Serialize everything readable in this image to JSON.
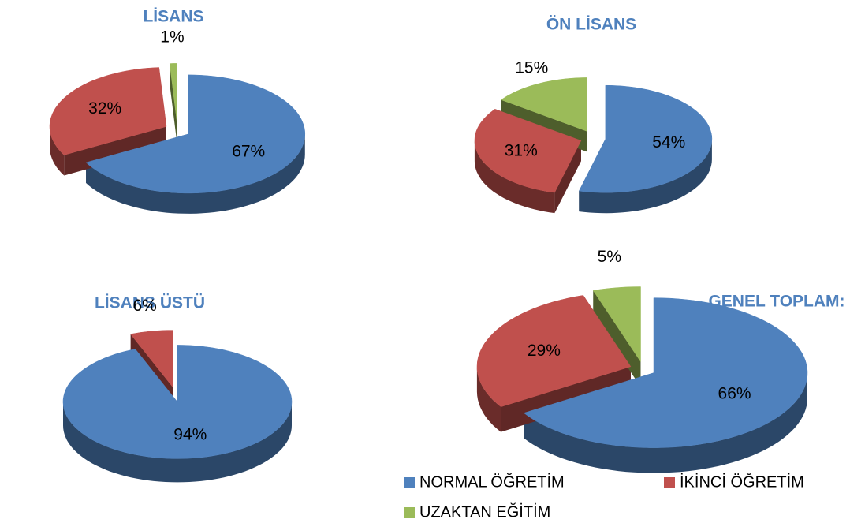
{
  "chart_data": [
    {
      "type": "pie",
      "title": "LİSANS",
      "categories": [
        "NORMAL ÖĞRETİM",
        "İKİNCİ ÖĞRETİM",
        "UZAKTAN EĞİTİM"
      ],
      "values": [
        67,
        32,
        1
      ],
      "value_labels": [
        "67%",
        "32%",
        "1%"
      ],
      "colors": [
        "#4f81bd",
        "#c0504d",
        "#9bbb59"
      ]
    },
    {
      "type": "pie",
      "title": "ÖN LİSANS",
      "categories": [
        "NORMAL ÖĞRETİM",
        "İKİNCİ ÖĞRETİM",
        "UZAKTAN EĞİTİM"
      ],
      "values": [
        54,
        31,
        15
      ],
      "value_labels": [
        "54%",
        "31%",
        "15%"
      ],
      "colors": [
        "#4f81bd",
        "#c0504d",
        "#9bbb59"
      ]
    },
    {
      "type": "pie",
      "title": "LİSANS ÜSTÜ",
      "categories": [
        "NORMAL ÖĞRETİM",
        "İKİNCİ ÖĞRETİM",
        "UZAKTAN EĞİTİM"
      ],
      "values": [
        94,
        6,
        0
      ],
      "value_labels": [
        "94%",
        "6%",
        null
      ],
      "colors": [
        "#4f81bd",
        "#c0504d",
        "#9bbb59"
      ]
    },
    {
      "type": "pie",
      "title": "GENEL TOPLAM:",
      "categories": [
        "NORMAL ÖĞRETİM",
        "İKİNCİ ÖĞRETİM",
        "UZAKTAN EĞİTİM"
      ],
      "values": [
        66,
        29,
        5
      ],
      "value_labels": [
        "66%",
        "29%",
        "5%"
      ],
      "colors": [
        "#4f81bd",
        "#c0504d",
        "#9bbb59"
      ],
      "legend": "bottom"
    }
  ]
}
